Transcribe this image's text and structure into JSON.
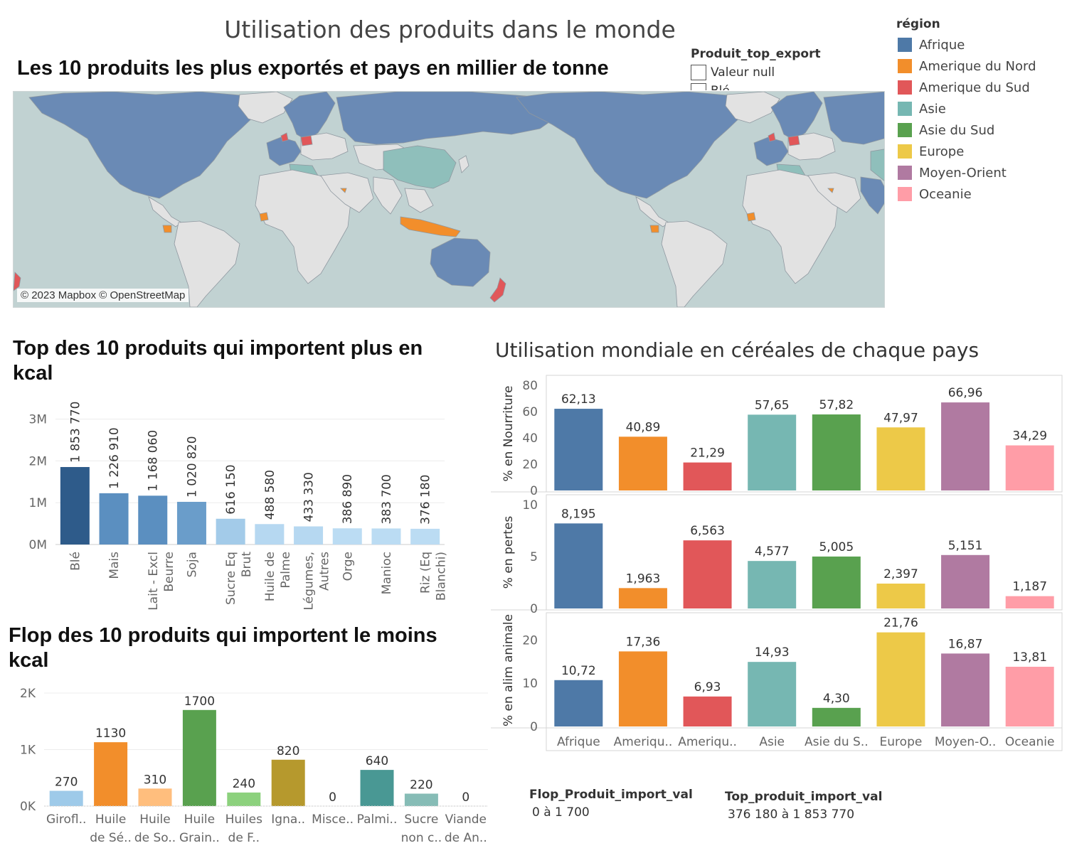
{
  "page": {
    "title": "Utilisation des produits dans le monde",
    "map_title": "Les 10 produits les plus exportés et pays en millier de tonne",
    "map_credit": "© 2023 Mapbox © OpenStreetMap",
    "filter": {
      "title": "Produit_top_export",
      "items": [
        "Valeur null",
        "Blé"
      ]
    },
    "legend": {
      "title": "région",
      "items": [
        {
          "label": "Afrique",
          "color": "#4e79a7"
        },
        {
          "label": "Amerique du Nord",
          "color": "#f28e2b"
        },
        {
          "label": "Amerique du Sud",
          "color": "#e15759"
        },
        {
          "label": "Asie",
          "color": "#76b7b2"
        },
        {
          "label": "Asie du Sud",
          "color": "#59a14f"
        },
        {
          "label": "Europe",
          "color": "#edc948"
        },
        {
          "label": "Moyen-Orient",
          "color": "#b07aa1"
        },
        {
          "label": "Oceanie",
          "color": "#ff9da7"
        }
      ]
    },
    "flop_range": {
      "label": "Flop_Produit_import_val",
      "value": "0 à 1 700"
    },
    "top_range": {
      "label": "Top_produit_import_val",
      "value": "376 180 à 1 853 770"
    }
  },
  "chart_data": [
    {
      "id": "top",
      "type": "bar",
      "title": "Top des 10 produits qui importent plus en kcal",
      "categories": [
        [
          "Blé"
        ],
        [
          "Mais"
        ],
        [
          "Lait - Excl",
          "Beurre"
        ],
        [
          "Soja"
        ],
        [
          "Sucre Eq",
          "Brut"
        ],
        [
          "Huile de",
          "Palme"
        ],
        [
          "Légumes,",
          "Autres"
        ],
        [
          "Orge"
        ],
        [
          "Manioc"
        ],
        [
          "Riz (Eq",
          "Blanchi)"
        ]
      ],
      "values": [
        1853770,
        1226910,
        1168060,
        1020820,
        616150,
        488580,
        433330,
        386890,
        383700,
        376180
      ],
      "data_labels": [
        "1 853 770",
        "1 226 910",
        "1 168 060",
        "1 020 820",
        "616 150",
        "488 580",
        "433 330",
        "386 890",
        "383 700",
        "376 180"
      ],
      "colors": [
        "#2e5b8a",
        "#5b8fc0",
        "#5b8fc0",
        "#6a9dca",
        "#a3cbe9",
        "#b6d8f1",
        "#b6d8f1",
        "#bbdcf3",
        "#bbdcf3",
        "#bbdcf3"
      ],
      "ylim": [
        0,
        3300000
      ],
      "yticks": [
        0,
        1000000,
        2000000,
        3000000
      ],
      "ytick_labels": [
        "0M",
        "1M",
        "2M",
        "3M"
      ]
    },
    {
      "id": "flop",
      "type": "bar",
      "title": "Flop des 10 produits qui importent le moins kcal",
      "categories": [
        [
          "Girofl.."
        ],
        [
          "Huile",
          "de Sé.."
        ],
        [
          "Huile",
          "de So.."
        ],
        [
          "Huile",
          "Grain.."
        ],
        [
          "Huiles",
          "de F.."
        ],
        [
          "Igna.."
        ],
        [
          "Misce.."
        ],
        [
          "Palmi.."
        ],
        [
          "Sucre",
          "non c.."
        ],
        [
          "Viande",
          "de An.."
        ]
      ],
      "values": [
        270,
        1130,
        310,
        1700,
        240,
        820,
        0,
        640,
        220,
        0
      ],
      "data_labels": [
        "270",
        "1130",
        "310",
        "1700",
        "240",
        "820",
        "0",
        "640",
        "220",
        "0"
      ],
      "colors": [
        "#9ecae9",
        "#f28e2b",
        "#ffbe7d",
        "#59a14f",
        "#8cd17d",
        "#b6992d",
        "#f1ce63",
        "#499894",
        "#86bcb6",
        "#e15759"
      ],
      "ylim": [
        0,
        2100
      ],
      "yticks": [
        0,
        1000,
        2000
      ],
      "ytick_labels": [
        "0K",
        "1K",
        "2K"
      ]
    },
    {
      "id": "cereales",
      "type": "bar",
      "title": "Utilisation mondiale en céréales de chaque pays",
      "categories": [
        "Afrique",
        "Ameriqu..",
        "Ameriqu..",
        "Asie",
        "Asie du S..",
        "Europe",
        "Moyen-O..",
        "Oceanie"
      ],
      "colors": [
        "#4e79a7",
        "#f28e2b",
        "#e15759",
        "#76b7b2",
        "#59a14f",
        "#edc948",
        "#b07aa1",
        "#ff9da7"
      ],
      "panels": [
        {
          "ylabel": "% en Nourriture",
          "values": [
            62.13,
            40.89,
            21.29,
            57.65,
            57.82,
            47.97,
            66.96,
            34.29
          ],
          "data_labels": [
            "62,13",
            "40,89",
            "21,29",
            "57,65",
            "57,82",
            "47,97",
            "66,96",
            "34,29"
          ],
          "ylim": [
            0,
            80
          ],
          "yticks": [
            0,
            20,
            40,
            60,
            80
          ]
        },
        {
          "ylabel": "% en pertes",
          "values": [
            8.195,
            1.963,
            6.563,
            4.577,
            5.005,
            2.397,
            5.151,
            1.187
          ],
          "data_labels": [
            "8,195",
            "1,963",
            "6,563",
            "4,577",
            "5,005",
            "2,397",
            "5,151",
            "1,187"
          ],
          "ylim": [
            0,
            10
          ],
          "yticks": [
            0,
            5,
            10
          ]
        },
        {
          "ylabel": "% en alim animale",
          "values": [
            10.72,
            17.36,
            6.93,
            14.93,
            4.3,
            21.76,
            16.87,
            13.81
          ],
          "data_labels": [
            "10,72",
            "17,36",
            "6,93",
            "14,93",
            "4,30",
            "21,76",
            "16,87",
            "13,81"
          ],
          "ylim": [
            0,
            24
          ],
          "yticks": [
            0,
            10,
            20
          ]
        }
      ]
    }
  ]
}
